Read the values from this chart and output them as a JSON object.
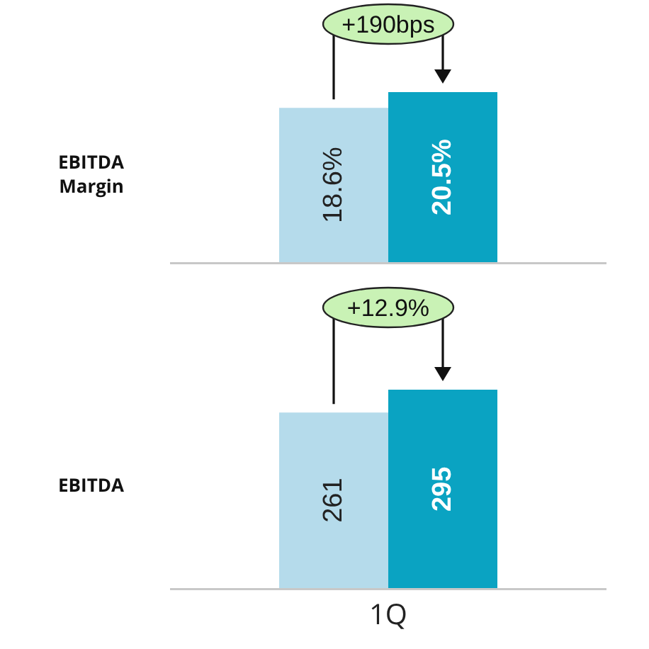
{
  "chart_data": [
    {
      "type": "bar",
      "ylabel": "EBITDA Margin",
      "categories": [
        null
      ],
      "tick_labels": false,
      "series": [
        {
          "color": "#b5dbeb",
          "values": [
            18.6
          ],
          "value_labels": [
            "18.6%"
          ]
        },
        {
          "color": "#0aa3c2",
          "values": [
            20.5
          ],
          "value_labels": [
            "20.5%"
          ]
        }
      ],
      "annotations": [
        "+190bps"
      ]
    },
    {
      "type": "bar",
      "ylabel": "EBITDA",
      "categories": [
        "1Q"
      ],
      "tick_labels": "x",
      "series": [
        {
          "color": "#b5dbeb",
          "values": [
            261
          ],
          "value_labels": [
            "261"
          ]
        },
        {
          "color": "#0aa3c2",
          "values": [
            295
          ],
          "value_labels": [
            "295"
          ]
        }
      ],
      "annotations": [
        "+12.9%"
      ]
    }
  ]
}
